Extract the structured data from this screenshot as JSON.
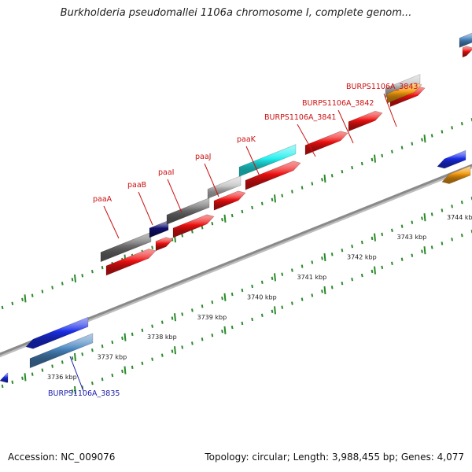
{
  "title": "Burkholderia pseudomallei 1106a chromosome I, complete genom...",
  "footer": {
    "accession": "Accession: NC_009076",
    "summary": "Topology: circular; Length: 3,988,455 bp; Genes: 4,077"
  },
  "colors": {
    "backbone": "#8a8a8a",
    "tick": "#2a8a2a",
    "red": "#ee1111",
    "dark_gray": "#6e6e6e",
    "light_gray": "#c8c8c8",
    "navy": "#101070",
    "cyan": "#22eeee",
    "blue": "#1a2ee8",
    "steel_blue": "#4a86c0",
    "orange": "#f39a10",
    "label_red": "#cc1111",
    "label_blue": "#1a1aaa"
  },
  "scale": {
    "ticks": [
      {
        "kbp": 3736,
        "label": "3736 kbp"
      },
      {
        "kbp": 3737,
        "label": "3737 kbp"
      },
      {
        "kbp": 3738,
        "label": "3738 kbp"
      },
      {
        "kbp": 3739,
        "label": "3739 kbp"
      },
      {
        "kbp": 3740,
        "label": "3740 kbp"
      },
      {
        "kbp": 3741,
        "label": "3741 kbp"
      },
      {
        "kbp": 3742,
        "label": "3742 kbp"
      },
      {
        "kbp": 3743,
        "label": "3743 kbp"
      },
      {
        "kbp": 3744,
        "label": "3744 kbp"
      }
    ]
  },
  "genes": [
    {
      "label": "paaA",
      "color": "label_red"
    },
    {
      "label": "paaB",
      "color": "label_red"
    },
    {
      "label": "paaI",
      "color": "label_red"
    },
    {
      "label": "paaJ",
      "color": "label_red"
    },
    {
      "label": "paaK",
      "color": "label_red"
    },
    {
      "label": "BURPS1106A_3841",
      "color": "label_red"
    },
    {
      "label": "BURPS1106A_3842",
      "color": "label_red"
    },
    {
      "label": "BURPS1106A_3843",
      "color": "label_red"
    },
    {
      "label": "BURPS1106A_3835",
      "color": "label_blue"
    }
  ]
}
